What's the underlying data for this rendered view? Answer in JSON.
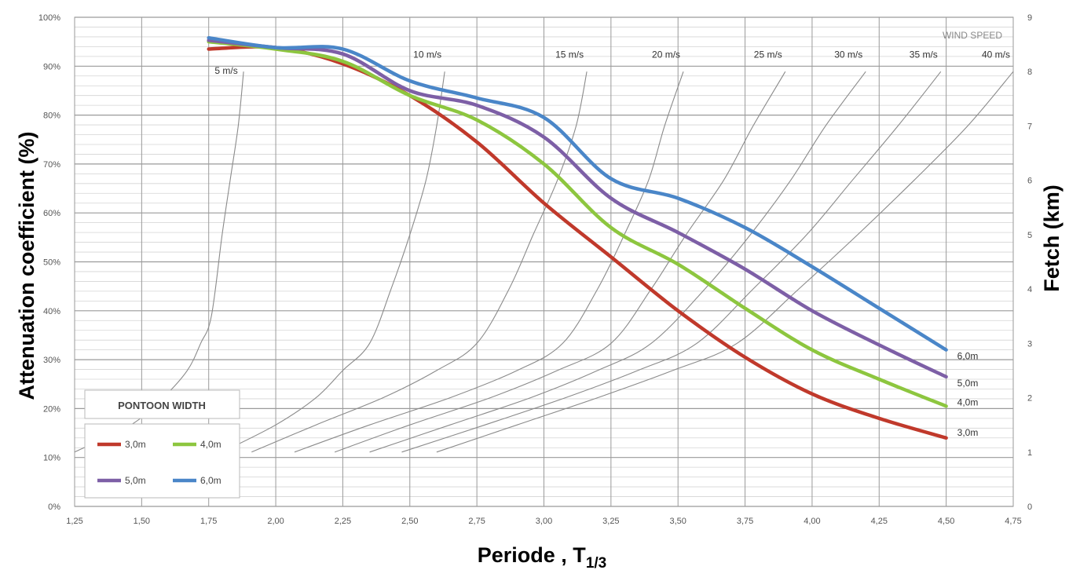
{
  "chart_data": {
    "type": "line",
    "xlabel": "Periode , T",
    "xlabel_sub": "1/3",
    "ylabel": "Attenuation coefficient (%)",
    "y2label": "Fetch (km)",
    "xlim": [
      1.25,
      4.75
    ],
    "ylim": [
      0,
      100
    ],
    "y2lim": [
      0,
      9
    ],
    "x_ticks": [
      1.25,
      1.5,
      1.75,
      2.0,
      2.25,
      2.5,
      2.75,
      3.0,
      3.25,
      3.5,
      3.75,
      4.0,
      4.25,
      4.5,
      4.75
    ],
    "x_tick_labels": [
      "1,25",
      "1,50",
      "1,75",
      "2,00",
      "2,25",
      "2,50",
      "2,75",
      "3,00",
      "3,25",
      "3,50",
      "3,75",
      "4,00",
      "4,25",
      "4,50",
      "4,75"
    ],
    "y_ticks": [
      0,
      10,
      20,
      30,
      40,
      50,
      60,
      70,
      80,
      90,
      100
    ],
    "y_tick_labels": [
      "0%",
      "10%",
      "20%",
      "30%",
      "40%",
      "50%",
      "60%",
      "70%",
      "80%",
      "90%",
      "100%"
    ],
    "y2_ticks": [
      0,
      1,
      2,
      3,
      4,
      5,
      6,
      7,
      8,
      9
    ],
    "y2_tick_labels": [
      "0",
      "1",
      "2",
      "3",
      "4",
      "5",
      "6",
      "7",
      "8",
      "9"
    ],
    "grid": "major and minor horizontal, vertical at x ticks",
    "legend_title": "PONTOON WIDTH",
    "legend_position": "bottom-left",
    "series": [
      {
        "name": "3,0m",
        "end_label": "3,0m",
        "color": "#c0392b",
        "x": [
          1.75,
          2.0,
          2.25,
          2.5,
          2.75,
          3.0,
          3.25,
          3.5,
          3.75,
          4.0,
          4.25,
          4.5
        ],
        "y": [
          93.5,
          93.8,
          90.5,
          84,
          74.5,
          62,
          51,
          40,
          30.5,
          23,
          18,
          14
        ]
      },
      {
        "name": "4,0m",
        "end_label": "4,0m",
        "color": "#8dc63f",
        "x": [
          1.75,
          2.0,
          2.25,
          2.5,
          2.75,
          3.0,
          3.25,
          3.5,
          3.75,
          4.0,
          4.25,
          4.5
        ],
        "y": [
          95,
          93.5,
          91,
          84,
          79,
          70,
          57,
          49.5,
          40.5,
          32,
          26,
          20.5
        ]
      },
      {
        "name": "5,0m",
        "end_label": "5,0m",
        "color": "#7d5fa6",
        "x": [
          1.75,
          2.0,
          2.25,
          2.5,
          2.75,
          3.0,
          3.25,
          3.5,
          3.75,
          4.0,
          4.25,
          4.5
        ],
        "y": [
          95.3,
          93.8,
          92.5,
          85,
          82,
          75.5,
          63,
          56,
          48.5,
          40,
          33,
          26.5
        ]
      },
      {
        "name": "6,0m",
        "end_label": "6,0m",
        "color": "#4a86c8",
        "x": [
          1.75,
          2.0,
          2.25,
          2.5,
          2.75,
          3.0,
          3.25,
          3.5,
          3.75,
          4.0,
          4.25,
          4.5
        ],
        "y": [
          95.8,
          93.8,
          93.5,
          87,
          83.5,
          79.5,
          67,
          63,
          57,
          49,
          40.5,
          32
        ]
      }
    ],
    "wind_speed_header": "WIND SPEED",
    "wind_curves": [
      {
        "label": "5 m/s",
        "x": [
          1.25,
          1.46,
          1.58,
          1.67,
          1.72,
          1.76,
          1.8,
          1.83,
          1.86,
          1.88
        ],
        "fetch": [
          1.0,
          1.5,
          2.0,
          2.5,
          3.0,
          3.5,
          5.0,
          6.0,
          7.0,
          8.0
        ]
      },
      {
        "label": "10 m/s",
        "x": [
          1.8,
          2.0,
          2.15,
          2.25,
          2.35,
          2.43,
          2.5,
          2.56,
          2.6,
          2.63
        ],
        "fetch": [
          1.0,
          1.5,
          2.0,
          2.5,
          3.0,
          4.0,
          5.0,
          6.0,
          7.0,
          8.0
        ]
      },
      {
        "label": "15 m/s",
        "x": [
          1.91,
          2.15,
          2.4,
          2.6,
          2.75,
          2.87,
          2.96,
          3.05,
          3.12,
          3.16
        ],
        "fetch": [
          1.0,
          1.5,
          2.0,
          2.5,
          3.0,
          4.0,
          5.0,
          6.0,
          7.0,
          8.0
        ]
      },
      {
        "label": "20 m/s",
        "x": [
          2.07,
          2.35,
          2.65,
          2.9,
          3.07,
          3.2,
          3.3,
          3.39,
          3.45,
          3.52
        ],
        "fetch": [
          1.0,
          1.5,
          2.0,
          2.5,
          3.0,
          4.0,
          5.0,
          6.0,
          7.0,
          8.0
        ]
      },
      {
        "label": "25 m/s",
        "x": [
          2.22,
          2.5,
          2.8,
          3.05,
          3.25,
          3.4,
          3.53,
          3.67,
          3.78,
          3.9
        ],
        "fetch": [
          1.0,
          1.5,
          2.0,
          2.5,
          3.0,
          4.0,
          5.0,
          6.0,
          7.0,
          8.0
        ]
      },
      {
        "label": "30 m/s",
        "x": [
          2.35,
          2.65,
          2.95,
          3.2,
          3.4,
          3.6,
          3.77,
          3.92,
          4.05,
          4.2
        ],
        "fetch": [
          1.0,
          1.5,
          2.0,
          2.5,
          3.0,
          4.0,
          5.0,
          6.0,
          7.0,
          8.0
        ]
      },
      {
        "label": "35 m/s",
        "x": [
          2.47,
          2.78,
          3.08,
          3.35,
          3.57,
          3.78,
          3.98,
          4.15,
          4.32,
          4.48
        ],
        "fetch": [
          1.0,
          1.5,
          2.0,
          2.5,
          3.0,
          4.0,
          5.0,
          6.0,
          7.0,
          8.0
        ]
      },
      {
        "label": "40 m/s",
        "x": [
          2.6,
          2.9,
          3.2,
          3.48,
          3.72,
          3.95,
          4.17,
          4.38,
          4.58,
          4.75
        ],
        "fetch": [
          1.0,
          1.5,
          2.0,
          2.5,
          3.0,
          4.0,
          5.0,
          6.0,
          7.0,
          8.0
        ]
      }
    ]
  }
}
